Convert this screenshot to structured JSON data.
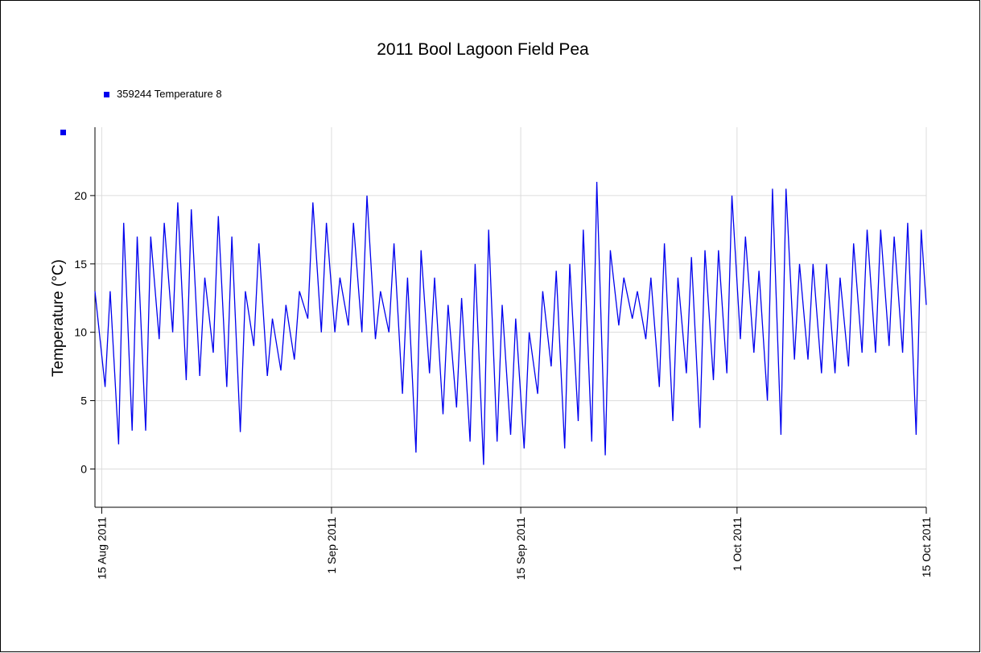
{
  "chart_data": {
    "type": "line",
    "title": "2011 Bool Lagoon Field Pea",
    "ylabel": "Temperature (°C)",
    "legend": "top-left",
    "grid": true,
    "ylim": [
      -2.8,
      25
    ],
    "yticks": [
      0,
      5,
      10,
      15,
      20
    ],
    "xlim": [
      "2011-08-14T12:00",
      "2011-10-15T00:00"
    ],
    "xticks": [
      {
        "value": "2011-08-15T00:00",
        "label": "15 Aug 2011"
      },
      {
        "value": "2011-09-01T00:00",
        "label": "1 Sep 2011"
      },
      {
        "value": "2011-09-15T00:00",
        "label": "15 Sep 2011"
      },
      {
        "value": "2011-10-01T00:00",
        "label": "1 Oct 2011"
      },
      {
        "value": "2011-10-15T00:00",
        "label": "15 Oct 2011"
      }
    ],
    "x": [
      "2011-08-14T12:00",
      "2011-08-15T06:00",
      "2011-08-15T15:00",
      "2011-08-16T06:00",
      "2011-08-16T15:00",
      "2011-08-17T06:00",
      "2011-08-17T15:00",
      "2011-08-18T06:00",
      "2011-08-18T15:00",
      "2011-08-19T06:00",
      "2011-08-19T15:00",
      "2011-08-20T06:00",
      "2011-08-20T15:00",
      "2011-08-21T06:00",
      "2011-08-21T15:00",
      "2011-08-22T06:00",
      "2011-08-22T15:00",
      "2011-08-23T06:00",
      "2011-08-23T15:00",
      "2011-08-24T06:00",
      "2011-08-24T15:00",
      "2011-08-25T06:00",
      "2011-08-25T15:00",
      "2011-08-26T06:00",
      "2011-08-26T15:00",
      "2011-08-27T06:00",
      "2011-08-27T15:00",
      "2011-08-28T06:00",
      "2011-08-28T15:00",
      "2011-08-29T06:00",
      "2011-08-29T15:00",
      "2011-08-30T06:00",
      "2011-08-30T15:00",
      "2011-08-31T06:00",
      "2011-08-31T15:00",
      "2011-09-01T06:00",
      "2011-09-01T15:00",
      "2011-09-02T06:00",
      "2011-09-02T15:00",
      "2011-09-03T06:00",
      "2011-09-03T15:00",
      "2011-09-04T06:00",
      "2011-09-04T15:00",
      "2011-09-05T06:00",
      "2011-09-05T15:00",
      "2011-09-06T06:00",
      "2011-09-06T15:00",
      "2011-09-07T06:00",
      "2011-09-07T15:00",
      "2011-09-08T06:00",
      "2011-09-08T15:00",
      "2011-09-09T06:00",
      "2011-09-09T15:00",
      "2011-09-10T06:00",
      "2011-09-10T15:00",
      "2011-09-11T06:00",
      "2011-09-11T15:00",
      "2011-09-12T06:00",
      "2011-09-12T15:00",
      "2011-09-13T06:00",
      "2011-09-13T15:00",
      "2011-09-14T06:00",
      "2011-09-14T15:00",
      "2011-09-15T06:00",
      "2011-09-15T15:00",
      "2011-09-16T06:00",
      "2011-09-16T15:00",
      "2011-09-17T06:00",
      "2011-09-17T15:00",
      "2011-09-18T06:00",
      "2011-09-18T15:00",
      "2011-09-19T06:00",
      "2011-09-19T15:00",
      "2011-09-20T06:00",
      "2011-09-20T15:00",
      "2011-09-21T06:00",
      "2011-09-21T15:00",
      "2011-09-22T06:00",
      "2011-09-22T15:00",
      "2011-09-23T06:00",
      "2011-09-23T15:00",
      "2011-09-24T06:00",
      "2011-09-24T15:00",
      "2011-09-25T06:00",
      "2011-09-25T15:00",
      "2011-09-26T06:00",
      "2011-09-26T15:00",
      "2011-09-27T06:00",
      "2011-09-27T15:00",
      "2011-09-28T06:00",
      "2011-09-28T15:00",
      "2011-09-29T06:00",
      "2011-09-29T15:00",
      "2011-09-30T06:00",
      "2011-09-30T15:00",
      "2011-10-01T06:00",
      "2011-10-01T15:00",
      "2011-10-02T06:00",
      "2011-10-02T15:00",
      "2011-10-03T06:00",
      "2011-10-03T15:00",
      "2011-10-04T06:00",
      "2011-10-04T15:00",
      "2011-10-05T06:00",
      "2011-10-05T15:00",
      "2011-10-06T06:00",
      "2011-10-06T15:00",
      "2011-10-07T06:00",
      "2011-10-07T15:00",
      "2011-10-08T06:00",
      "2011-10-08T15:00",
      "2011-10-09T06:00",
      "2011-10-09T15:00",
      "2011-10-10T06:00",
      "2011-10-10T15:00",
      "2011-10-11T06:00",
      "2011-10-11T15:00",
      "2011-10-12T06:00",
      "2011-10-12T15:00",
      "2011-10-13T06:00",
      "2011-10-13T15:00",
      "2011-10-14T06:00",
      "2011-10-14T15:00",
      "2011-10-15T00:00"
    ],
    "series": [
      {
        "name": "359244  Temperature 8",
        "color": "#0000ee",
        "values": [
          13,
          6,
          13,
          1.8,
          18,
          2.8,
          17,
          2.8,
          17,
          9.5,
          18,
          10,
          19.5,
          6.5,
          19,
          6.8,
          14,
          8.5,
          18.5,
          6,
          17,
          2.7,
          13,
          9,
          16.5,
          6.8,
          11,
          7.2,
          12,
          8,
          13,
          11,
          19.5,
          10,
          18,
          10,
          14,
          10.5,
          18,
          10,
          20,
          9.5,
          13,
          10,
          16.5,
          5.5,
          14,
          1.2,
          16,
          7,
          14,
          4,
          12,
          4.5,
          12.5,
          2,
          15,
          0.3,
          17.5,
          2,
          12,
          2.5,
          11,
          1.5,
          10,
          5.5,
          13,
          7.5,
          14.5,
          1.5,
          15,
          3.5,
          17.5,
          2,
          21,
          1,
          16,
          10.5,
          14,
          11,
          13,
          9.5,
          14,
          6,
          16.5,
          3.5,
          14,
          7,
          15.5,
          3,
          16,
          6.5,
          16,
          7,
          20,
          9.5,
          17,
          8.5,
          14.5,
          5,
          20.5,
          2.5,
          20.5,
          8,
          15,
          8,
          15,
          7,
          15,
          7,
          14,
          7.5,
          16.5,
          8.5,
          17.5,
          8.5,
          17.5,
          9,
          17,
          8.5,
          18,
          2.5,
          17.5,
          12
        ]
      }
    ]
  }
}
